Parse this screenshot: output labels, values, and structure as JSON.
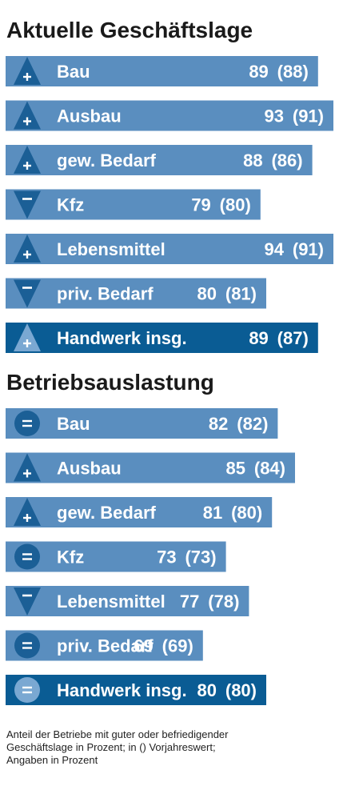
{
  "colors": {
    "bar": "#5a8ebf",
    "bar_total": "#0a5c94",
    "marker": "#1b5f96",
    "marker_total": "#7aa8d2",
    "text": "#ffffff"
  },
  "chart_data": [
    {
      "type": "bar",
      "title": "Aktuelle Geschäftslage",
      "unit": "percent",
      "categories": [
        "Bau",
        "Ausbau",
        "gew. Bedarf",
        "Kfz",
        "Lebensmittel",
        "priv. Bedarf",
        "Handwerk insg."
      ],
      "series": [
        {
          "name": "",
          "values": [
            89,
            93,
            88,
            79,
            94,
            80,
            89
          ]
        },
        {
          "name": "",
          "values": [
            88,
            91,
            86,
            80,
            91,
            81,
            87
          ]
        }
      ],
      "value_labels": [
        "89",
        "93",
        "88",
        "79",
        "94",
        "80",
        "89"
      ],
      "previous_labels": [
        "(88)",
        "(91)",
        "(86)",
        "(80)",
        "(91)",
        "(81)",
        "(87)"
      ],
      "trend": [
        "up",
        "up",
        "up",
        "down",
        "up",
        "down",
        "up"
      ],
      "highlight_last": true
    },
    {
      "type": "bar",
      "title": "Betriebsauslastung",
      "unit": "percent",
      "categories": [
        "Bau",
        "Ausbau",
        "gew. Bedarf",
        "Kfz",
        "Lebensmittel",
        "priv. Bedarf",
        "Handwerk insg."
      ],
      "series": [
        {
          "name": "",
          "values": [
            82,
            85,
            81,
            73,
            77,
            69,
            80
          ]
        },
        {
          "name": "",
          "values": [
            82,
            84,
            80,
            73,
            78,
            69,
            80
          ]
        }
      ],
      "value_labels": [
        "82",
        "85",
        "81",
        "73",
        "77",
        "69",
        "80"
      ],
      "previous_labels": [
        "(82)",
        "(84)",
        "(80)",
        "(73)",
        "(78)",
        "(69)",
        "(80)"
      ],
      "trend": [
        "equal",
        "up",
        "up",
        "equal",
        "down",
        "equal",
        "equal"
      ],
      "highlight_last": true
    }
  ],
  "icons": {
    "up": "triangle-up-plus-icon",
    "down": "triangle-down-minus-icon",
    "equal": "circle-equals-icon"
  },
  "footnote": [
    "Anteil der Betriebe mit guter oder befriedigender",
    "Geschäftslage in Prozent; in () Vorjahreswert;",
    "Angaben in Prozent"
  ]
}
